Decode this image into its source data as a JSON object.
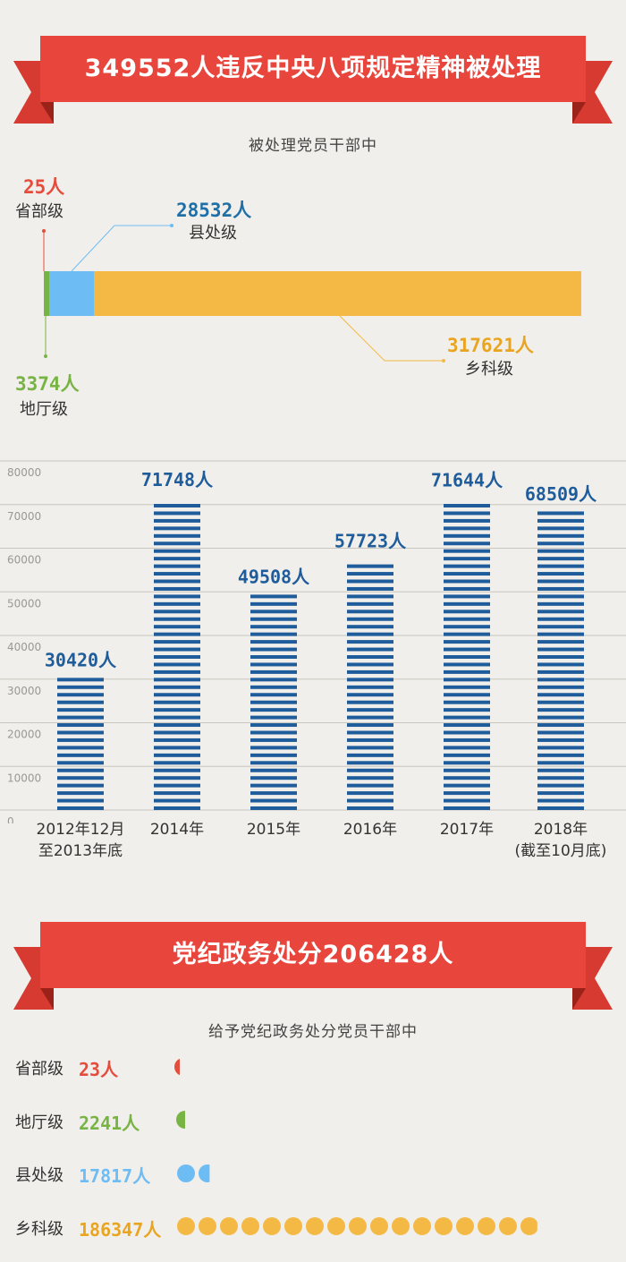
{
  "header1": {
    "title": "349552人违反中央八项规定精神被处理"
  },
  "section1": {
    "subtitle": "被处理党员干部中",
    "levels": [
      {
        "value_text": "25人",
        "label": "省部级",
        "value": 25,
        "color": "#e64c3c"
      },
      {
        "value_text": "3374人",
        "label": "地厅级",
        "value": 3374,
        "color": "#77b443"
      },
      {
        "value_text": "28532人",
        "label": "县处级",
        "value": 28532,
        "color": "#6ebcf4"
      },
      {
        "value_text": "317621人",
        "label": "乡科级",
        "value": 317621,
        "color": "#f3b944"
      }
    ]
  },
  "chart_data": {
    "type": "bar",
    "categories": [
      "2012年12月至2013年底",
      "2014年",
      "2015年",
      "2016年",
      "2017年",
      "2018年(截至10月底)"
    ],
    "category_lines": [
      [
        "2012年12月",
        "至2013年底"
      ],
      [
        "2014年"
      ],
      [
        "2015年"
      ],
      [
        "2016年"
      ],
      [
        "2017年"
      ],
      [
        "2018年",
        "(截至10月底)"
      ]
    ],
    "values": [
      30420,
      71748,
      49508,
      57723,
      71644,
      68509
    ],
    "value_labels": [
      "30420人",
      "71748人",
      "49508人",
      "57723人",
      "71644人",
      "68509人"
    ],
    "yticks": [
      "0",
      "10000",
      "20000",
      "30000",
      "40000",
      "50000",
      "60000",
      "70000",
      "80000"
    ],
    "ylim": [
      0,
      80000
    ],
    "grid": true,
    "bar_color": "#1e5c9b",
    "title": "",
    "xlabel": "",
    "ylabel": ""
  },
  "header2": {
    "title": "党纪政务处分206428人"
  },
  "section2": {
    "subtitle": "给予党纪政务处分党员干部中",
    "rows": [
      {
        "label": "省部级",
        "value_text": "23人",
        "value": 23,
        "color": "#e64c3c"
      },
      {
        "label": "地厅级",
        "value_text": "2241人",
        "value": 2241,
        "color": "#77b443"
      },
      {
        "label": "县处级",
        "value_text": "17817人",
        "value": 17817,
        "color": "#6ebcf4"
      },
      {
        "label": "乡科级",
        "value_text": "186347人",
        "value": 186347,
        "color": "#f3b944"
      }
    ]
  },
  "colors": {
    "ribbon": "#e8453c",
    "ribbon_dark": "#b52a22"
  }
}
